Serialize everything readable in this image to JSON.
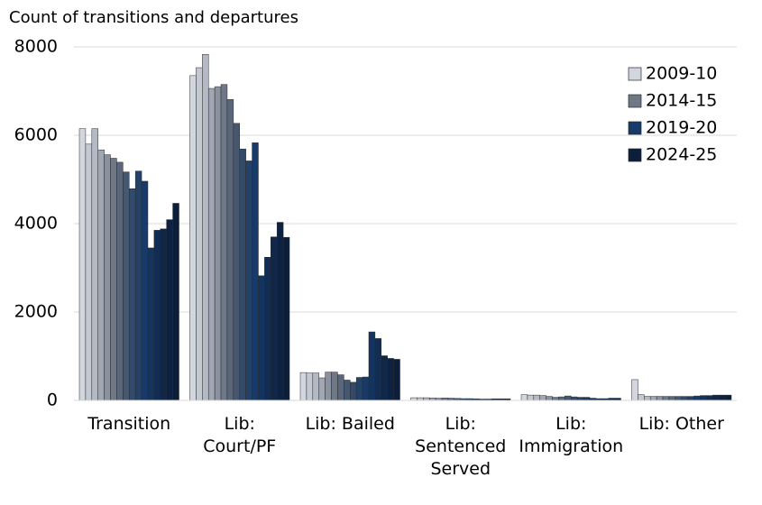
{
  "chart_data": {
    "type": "bar",
    "title": "Count of transitions and departures",
    "categories": [
      "Transition",
      "Lib: Court/PF",
      "Lib: Bailed",
      "Lib: Sentenced Served",
      "Lib: Immigration",
      "Lib: Other"
    ],
    "ylim": [
      0,
      8000
    ],
    "yticks": [
      0,
      2000,
      4000,
      6000,
      8000
    ],
    "grid": true,
    "legend": "upper right",
    "series": [
      {
        "name": "2009-10",
        "color": "#d2d6de",
        "values": [
          6150,
          7350,
          630,
          60,
          130,
          470
        ]
      },
      {
        "color": "#c3c8d1",
        "values": [
          5800,
          7530,
          620,
          60,
          120,
          130
        ]
      },
      {
        "color": "#b4bac4",
        "values": [
          6150,
          7830,
          620,
          60,
          120,
          90
        ]
      },
      {
        "color": "#a0a7b3",
        "values": [
          5670,
          7060,
          510,
          55,
          110,
          90
        ]
      },
      {
        "color": "#8a92a0",
        "values": [
          5560,
          7100,
          640,
          50,
          90,
          90
        ]
      },
      {
        "name": "2014-15",
        "color": "#6f7887",
        "values": [
          5480,
          7150,
          640,
          55,
          70,
          90
        ]
      },
      {
        "color": "#5a677b",
        "values": [
          5390,
          6810,
          580,
          50,
          80,
          90
        ]
      },
      {
        "color": "#46586f",
        "values": [
          5170,
          6270,
          460,
          45,
          100,
          90
        ]
      },
      {
        "color": "#334b68",
        "values": [
          4790,
          5690,
          410,
          40,
          80,
          90
        ]
      },
      {
        "color": "#244167",
        "values": [
          5190,
          5420,
          520,
          40,
          70,
          90
        ]
      },
      {
        "name": "2019-20",
        "color": "#173a6b",
        "values": [
          4960,
          5830,
          530,
          35,
          70,
          100
        ]
      },
      {
        "color": "#143460",
        "values": [
          3450,
          2820,
          1550,
          30,
          50,
          110
        ]
      },
      {
        "color": "#112d54",
        "values": [
          3850,
          3240,
          1400,
          30,
          40,
          110
        ]
      },
      {
        "color": "#0f2749",
        "values": [
          3880,
          3700,
          1010,
          35,
          40,
          120
        ]
      },
      {
        "color": "#0d2242",
        "values": [
          4090,
          4030,
          950,
          35,
          50,
          120
        ]
      },
      {
        "name": "2024-25",
        "color": "#0b1e3a",
        "values": [
          4460,
          3690,
          930,
          35,
          50,
          120
        ]
      }
    ]
  }
}
